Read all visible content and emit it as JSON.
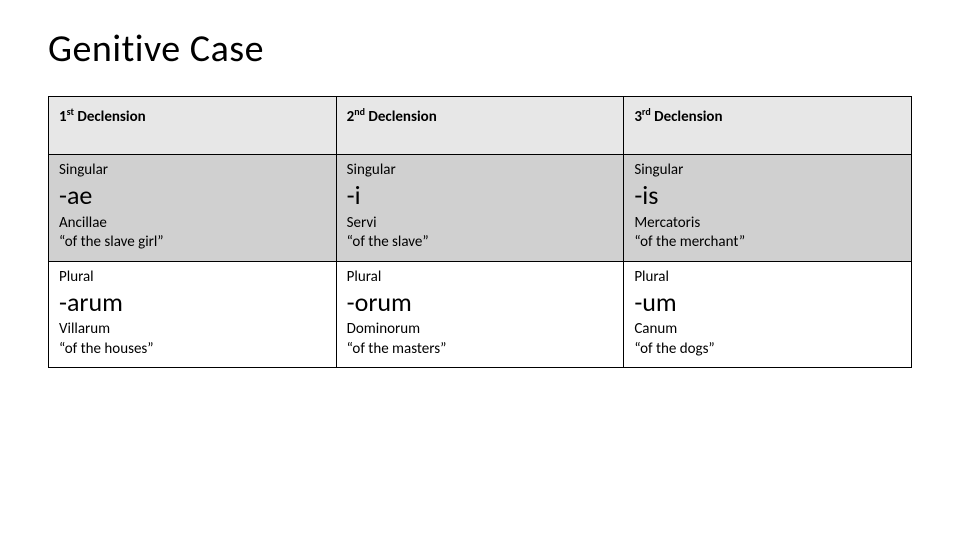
{
  "title": "Genitive Case",
  "table": {
    "columns": [
      {
        "ord": "1",
        "sup": "st",
        "word": "Declension"
      },
      {
        "ord": "2",
        "sup": "nd",
        "word": "Declension"
      },
      {
        "ord": "3",
        "sup": "rd",
        "word": "Declension"
      }
    ],
    "singular": {
      "label": "Singular",
      "endings": [
        "-ae",
        "-i",
        "-is"
      ],
      "examples": [
        {
          "latin": "Ancillae",
          "gloss": "“of the slave girl”"
        },
        {
          "latin": "Servi",
          "gloss": "“of the slave”"
        },
        {
          "latin": "Mercatoris",
          "gloss": "“of the merchant”"
        }
      ]
    },
    "plural": {
      "label": "Plural",
      "endings": [
        "-arum",
        "-orum",
        "-um"
      ],
      "examples": [
        {
          "latin": "Villarum",
          "gloss": "“of the houses”"
        },
        {
          "latin": "Dominorum",
          "gloss": "“of the masters”"
        },
        {
          "latin": "Canum",
          "gloss": "“of the dogs”"
        }
      ]
    },
    "header_bg": "#e7e7e7",
    "singular_bg": "#d0d0d0",
    "plural_bg": "#ffffff",
    "border_color": "#000000",
    "title_fontsize": 38,
    "ending_fontsize": 26,
    "body_fontsize": 15
  }
}
